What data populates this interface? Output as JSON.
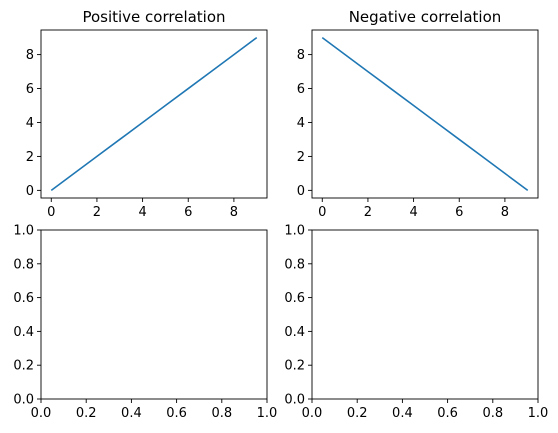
{
  "chart_data": [
    {
      "type": "line",
      "title": "Positive correlation",
      "xlabel": "",
      "ylabel": "",
      "xlim": [
        -0.45,
        9.45
      ],
      "ylim": [
        -0.45,
        9.45
      ],
      "xticks": [
        0,
        2,
        4,
        6,
        8
      ],
      "yticks": [
        0,
        2,
        4,
        6,
        8
      ],
      "xtick_labels": [
        "0",
        "2",
        "4",
        "6",
        "8"
      ],
      "ytick_labels": [
        "0",
        "2",
        "4",
        "6",
        "8"
      ],
      "series": [
        {
          "x": [
            0,
            1,
            2,
            3,
            4,
            5,
            6,
            7,
            8,
            9
          ],
          "y": [
            0,
            1,
            2,
            3,
            4,
            5,
            6,
            7,
            8,
            9
          ],
          "color": "#1f77b4"
        }
      ],
      "grid": false
    },
    {
      "type": "line",
      "title": "Negative correlation",
      "xlabel": "",
      "ylabel": "",
      "xlim": [
        -0.45,
        9.45
      ],
      "ylim": [
        -0.45,
        9.45
      ],
      "xticks": [
        0,
        2,
        4,
        6,
        8
      ],
      "yticks": [
        0,
        2,
        4,
        6,
        8
      ],
      "xtick_labels": [
        "0",
        "2",
        "4",
        "6",
        "8"
      ],
      "ytick_labels": [
        "0",
        "2",
        "4",
        "6",
        "8"
      ],
      "series": [
        {
          "x": [
            0,
            1,
            2,
            3,
            4,
            5,
            6,
            7,
            8,
            9
          ],
          "y": [
            9,
            8,
            7,
            6,
            5,
            4,
            3,
            2,
            1,
            0
          ],
          "color": "#1f77b4"
        }
      ],
      "grid": false
    },
    {
      "type": "line",
      "title": "",
      "xlabel": "",
      "ylabel": "",
      "xlim": [
        0,
        1
      ],
      "ylim": [
        0,
        1
      ],
      "xticks": [
        0,
        0.2,
        0.4,
        0.6,
        0.8,
        1.0
      ],
      "yticks": [
        0,
        0.2,
        0.4,
        0.6,
        0.8,
        1.0
      ],
      "xtick_labels": [
        "0.0",
        "0.2",
        "0.4",
        "0.6",
        "0.8",
        "1.0"
      ],
      "ytick_labels": [
        "0.0",
        "0.2",
        "0.4",
        "0.6",
        "0.8",
        "1.0"
      ],
      "series": [],
      "grid": false
    },
    {
      "type": "line",
      "title": "",
      "xlabel": "",
      "ylabel": "",
      "xlim": [
        0,
        1
      ],
      "ylim": [
        0,
        1
      ],
      "xticks": [
        0,
        0.2,
        0.4,
        0.6,
        0.8,
        1.0
      ],
      "yticks": [
        0,
        0.2,
        0.4,
        0.6,
        0.8,
        1.0
      ],
      "xtick_labels": [
        "0.0",
        "0.2",
        "0.4",
        "0.6",
        "0.8",
        "1.0"
      ],
      "ytick_labels": [
        "0.0",
        "0.2",
        "0.4",
        "0.6",
        "0.8",
        "1.0"
      ],
      "series": [],
      "grid": false
    }
  ]
}
